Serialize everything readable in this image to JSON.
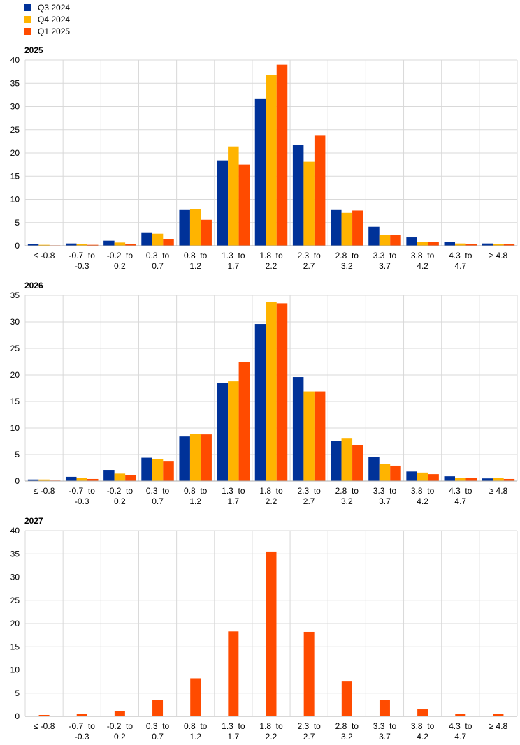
{
  "legend": [
    {
      "name": "Q3 2024",
      "color": "#003299"
    },
    {
      "name": "Q4 2024",
      "color": "#FFB400"
    },
    {
      "name": "Q1 2025",
      "color": "#FF4B00"
    }
  ],
  "chart_data": [
    {
      "type": "bar",
      "title": "2025",
      "categories": [
        [
          "≤ -0.8"
        ],
        [
          "-0.7  to",
          "-0.3"
        ],
        [
          "-0.2  to",
          "0.2"
        ],
        [
          "0.3  to",
          "0.7"
        ],
        [
          "0.8  to",
          "1.2"
        ],
        [
          "1.3  to",
          "1.7"
        ],
        [
          "1.8  to",
          "2.2"
        ],
        [
          "2.3  to",
          "2.7"
        ],
        [
          "2.8  to",
          "3.2"
        ],
        [
          "3.3  to",
          "3.7"
        ],
        [
          "3.8  to",
          "4.2"
        ],
        [
          "4.3  to",
          "4.7"
        ],
        [
          "≥ 4.8"
        ]
      ],
      "ylim": [
        0,
        40
      ],
      "yticks": [
        0,
        5,
        10,
        15,
        20,
        25,
        30,
        35,
        40
      ],
      "grid": true,
      "series": [
        {
          "name": "Q3 2024",
          "color": "#003299",
          "values": [
            0.3,
            0.5,
            1.1,
            2.9,
            7.7,
            18.4,
            31.6,
            21.7,
            7.7,
            4.1,
            1.8,
            0.9,
            0.5
          ]
        },
        {
          "name": "Q4 2024",
          "color": "#FFB400",
          "values": [
            0.2,
            0.4,
            0.7,
            2.6,
            7.9,
            21.4,
            36.8,
            18.1,
            7.1,
            2.3,
            0.9,
            0.5,
            0.4
          ]
        },
        {
          "name": "Q1 2025",
          "color": "#FF4B00",
          "values": [
            0.1,
            0.2,
            0.3,
            1.4,
            5.6,
            17.5,
            39.0,
            23.7,
            7.6,
            2.4,
            0.8,
            0.3,
            0.3
          ]
        }
      ]
    },
    {
      "type": "bar",
      "title": "2026",
      "categories": [
        [
          "≤ -0.8"
        ],
        [
          "-0.7  to",
          "-0.3"
        ],
        [
          "-0.2  to",
          "0.2"
        ],
        [
          "0.3  to",
          "0.7"
        ],
        [
          "0.8  to",
          "1.2"
        ],
        [
          "1.3  to",
          "1.7"
        ],
        [
          "1.8  to",
          "2.2"
        ],
        [
          "2.3  to",
          "2.7"
        ],
        [
          "2.8  to",
          "3.2"
        ],
        [
          "3.3  to",
          "3.7"
        ],
        [
          "3.8  to",
          "4.2"
        ],
        [
          "4.3  to",
          "4.7"
        ],
        [
          "≥ 4.8"
        ]
      ],
      "ylim": [
        0,
        35
      ],
      "yticks": [
        0,
        5,
        10,
        15,
        20,
        25,
        30,
        35
      ],
      "grid": true,
      "series": [
        {
          "name": "Q3 2024",
          "color": "#003299",
          "values": [
            0.3,
            0.8,
            2.1,
            4.4,
            8.4,
            18.5,
            29.6,
            19.6,
            7.6,
            4.5,
            1.8,
            0.9,
            0.5
          ]
        },
        {
          "name": "Q4 2024",
          "color": "#FFB400",
          "values": [
            0.3,
            0.6,
            1.4,
            4.2,
            8.9,
            18.8,
            33.8,
            16.9,
            8.0,
            3.2,
            1.6,
            0.6,
            0.6
          ]
        },
        {
          "name": "Q1 2025",
          "color": "#FF4B00",
          "values": [
            0.1,
            0.4,
            1.1,
            3.8,
            8.8,
            22.5,
            33.5,
            16.9,
            6.8,
            2.9,
            1.3,
            0.6,
            0.4
          ]
        }
      ]
    },
    {
      "type": "bar",
      "title": "2027",
      "categories": [
        [
          "≤ -0.8"
        ],
        [
          "-0.7  to",
          "-0.3"
        ],
        [
          "-0.2  to",
          "0.2"
        ],
        [
          "0.3  to",
          "0.7"
        ],
        [
          "0.8  to",
          "1.2"
        ],
        [
          "1.3  to",
          "1.7"
        ],
        [
          "1.8  to",
          "2.2"
        ],
        [
          "2.3  to",
          "2.7"
        ],
        [
          "2.8  to",
          "3.2"
        ],
        [
          "3.3  to",
          "3.7"
        ],
        [
          "3.8  to",
          "4.2"
        ],
        [
          "4.3  to",
          "4.7"
        ],
        [
          "≥ 4.8"
        ]
      ],
      "ylim": [
        0,
        40
      ],
      "yticks": [
        0,
        5,
        10,
        15,
        20,
        25,
        30,
        35,
        40
      ],
      "grid": true,
      "series": [
        {
          "name": "Q1 2025",
          "color": "#FF4B00",
          "values": [
            0.3,
            0.6,
            1.2,
            3.5,
            8.2,
            18.3,
            35.5,
            18.2,
            7.5,
            3.5,
            1.5,
            0.6,
            0.5
          ]
        }
      ]
    }
  ]
}
